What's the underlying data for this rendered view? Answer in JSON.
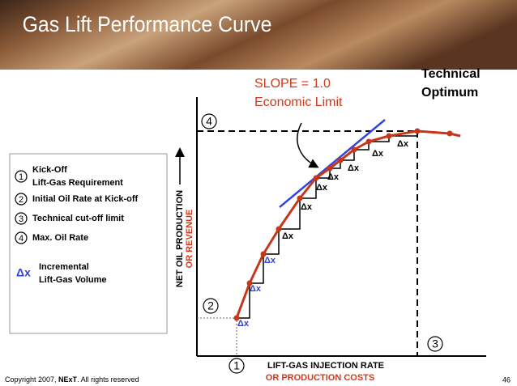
{
  "header": {
    "title": "Gas Lift Performance Curve"
  },
  "annotations": {
    "slope": "SLOPE = 1.0",
    "economic": "Economic Limit",
    "technical": "Technical",
    "optimum": "Optimum"
  },
  "legend": {
    "items": [
      {
        "marker": "1",
        "lines": [
          "Kick-Off",
          "Lift-Gas  Requirement"
        ]
      },
      {
        "marker": "2",
        "lines": [
          "Initial Oil Rate at  Kick-off"
        ]
      },
      {
        "marker": "3",
        "lines": [
          "Technical cut-off limit"
        ]
      },
      {
        "marker": "4",
        "lines": [
          "Max. Oil Rate"
        ]
      },
      {
        "marker": "Δx",
        "lines": [
          "Incremental",
          "Lift-Gas Volume"
        ]
      }
    ]
  },
  "axes": {
    "y_label": "NET OIL PRODUCTION",
    "y_label2": "OR REVENUE",
    "x_label": "LIFT-GAS INJECTION RATE",
    "x_label2": "OR PRODUCTION COSTS"
  },
  "points": {
    "p1": "1",
    "p2": "2",
    "p3": "3",
    "p4": "4"
  },
  "step_labels": [
    "Δx",
    "Δx",
    "Δx",
    "Δx",
    "Δx",
    "Δx",
    "Δx",
    "Δx",
    "Δx",
    "Δx"
  ],
  "footer": {
    "copyright1": "Copyright 2007, ",
    "brand": "NExT",
    ". All rights reserved": ". All rights reserved",
    "page": "46"
  }
}
